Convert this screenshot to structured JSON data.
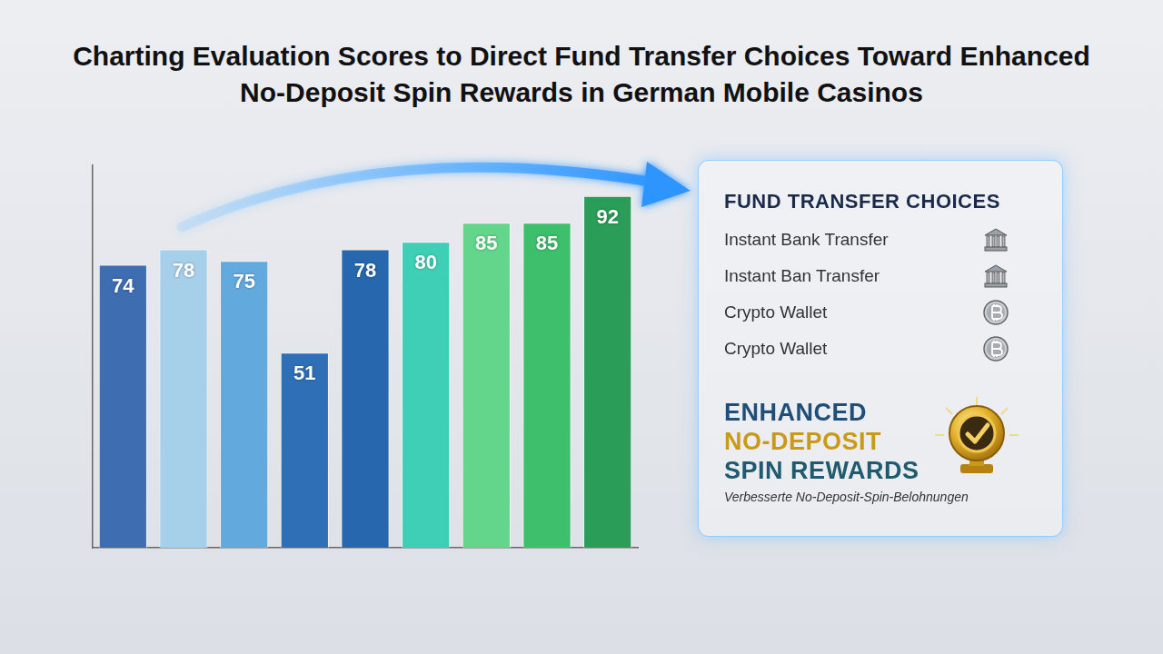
{
  "chart_data": {
    "type": "bar",
    "title": "Charting Evaluation Scores to Direct Fund Transfer Choices Toward Enhanced No-Deposit Spin Rewards in German Mobile Casinos",
    "categories": [
      null,
      null,
      null,
      null,
      null,
      null,
      null,
      null,
      null
    ],
    "values": [
      74,
      78,
      75,
      51,
      78,
      80,
      85,
      85,
      92
    ],
    "colors": [
      "#3f6db2",
      "#a6cfea",
      "#62a9de",
      "#2e6fb6",
      "#2667ae",
      "#3fcfb6",
      "#63d68c",
      "#3dbf6b",
      "#2a9d58"
    ],
    "ylim": [
      0,
      100
    ],
    "grid": false,
    "tick_labels": false,
    "data_labels": true
  },
  "side_panel": {
    "heading": "FUND TRANSFER CHOICES",
    "items": [
      "Instant Bank Transfer",
      "Instant Ban Transfer",
      "Crypto Wallet",
      "Crypto Wallet"
    ],
    "reward_title": [
      "ENHANCED",
      "NO-DEPOSIT",
      "SPIN REWARDS"
    ],
    "reward_subtitle": "Verbesserte No-Deposit-Spin-Belohnungen"
  }
}
